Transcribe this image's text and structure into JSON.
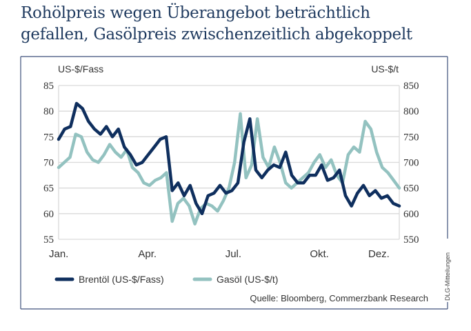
{
  "title": {
    "line1": "Rohölpreis wegen Überangebot beträchtlich",
    "line2": "gefallen, Gasölpreis zwischenzeitlich abgekoppelt"
  },
  "colors": {
    "title": "#1f3a5f",
    "frame": "#3d4f7a",
    "grid": "#d9d9d9",
    "brent": "#0f2f5e",
    "gasoil": "#93c2c0"
  },
  "credit": "DLG-Mitteilungen",
  "source": "Quelle: Bloomberg, Commerzbank Research",
  "chart_data": {
    "type": "line",
    "title": "Rohölpreis wegen Überangebot beträchtlich gefallen, Gasölpreis zwischenzeitlich abgekoppelt",
    "xlabel": "",
    "ylabel_left": "US-$/Fass",
    "ylabel_right": "US-$/t",
    "y_left": {
      "range": [
        55,
        85
      ],
      "ticks": [
        "85",
        "80",
        "75",
        "70",
        "65",
        "60",
        "55"
      ],
      "tick_values": [
        85,
        80,
        75,
        70,
        65,
        60,
        55
      ]
    },
    "y_right": {
      "range": [
        550,
        850
      ],
      "ticks": [
        "850",
        "800",
        "750",
        "700",
        "650",
        "600",
        "550"
      ],
      "tick_values": [
        850,
        800,
        750,
        700,
        650,
        600,
        550
      ]
    },
    "x_ticks": [
      {
        "label": "Jan.",
        "week": 0
      },
      {
        "label": "Apr.",
        "week": 13
      },
      {
        "label": "Jul.",
        "week": 26
      },
      {
        "label": "Okt.",
        "week": 39
      },
      {
        "label": "Dez.",
        "week": 48
      }
    ],
    "x_range_weeks": [
      0,
      51.5
    ],
    "grid": true,
    "legend": "bottom-left",
    "series": [
      {
        "name": "Brentöl (US-$/Fass)",
        "axis": "left",
        "values": [
          74.5,
          76.5,
          77,
          81.5,
          80.5,
          78,
          76.5,
          75.5,
          77,
          75,
          76.5,
          73,
          71.5,
          69.5,
          70,
          71.5,
          73,
          74.5,
          75,
          64.5,
          66,
          63.5,
          65.5,
          62,
          60,
          63.5,
          64,
          65.5,
          64,
          64.5,
          66,
          74,
          78.5,
          68.5,
          67,
          68.5,
          69.5,
          69,
          72,
          67.5,
          66,
          66,
          67.5,
          67.5,
          69.5,
          66.5,
          67,
          68.5,
          63.5,
          61.5,
          64,
          65.5,
          63.5,
          64.5,
          63,
          63.5,
          62,
          61.5
        ]
      },
      {
        "name": "Gasöl (US-$/t)",
        "axis": "right",
        "values": [
          690,
          700,
          710,
          755,
          750,
          720,
          705,
          700,
          715,
          735,
          720,
          710,
          725,
          690,
          680,
          660,
          655,
          665,
          670,
          680,
          585,
          620,
          630,
          615,
          580,
          610,
          620,
          615,
          605,
          625,
          650,
          700,
          795,
          670,
          695,
          785,
          710,
          690,
          730,
          700,
          660,
          650,
          660,
          670,
          680,
          700,
          715,
          690,
          705,
          675,
          660,
          715,
          730,
          720,
          780,
          765,
          720,
          690,
          680,
          665,
          650
        ]
      }
    ]
  }
}
